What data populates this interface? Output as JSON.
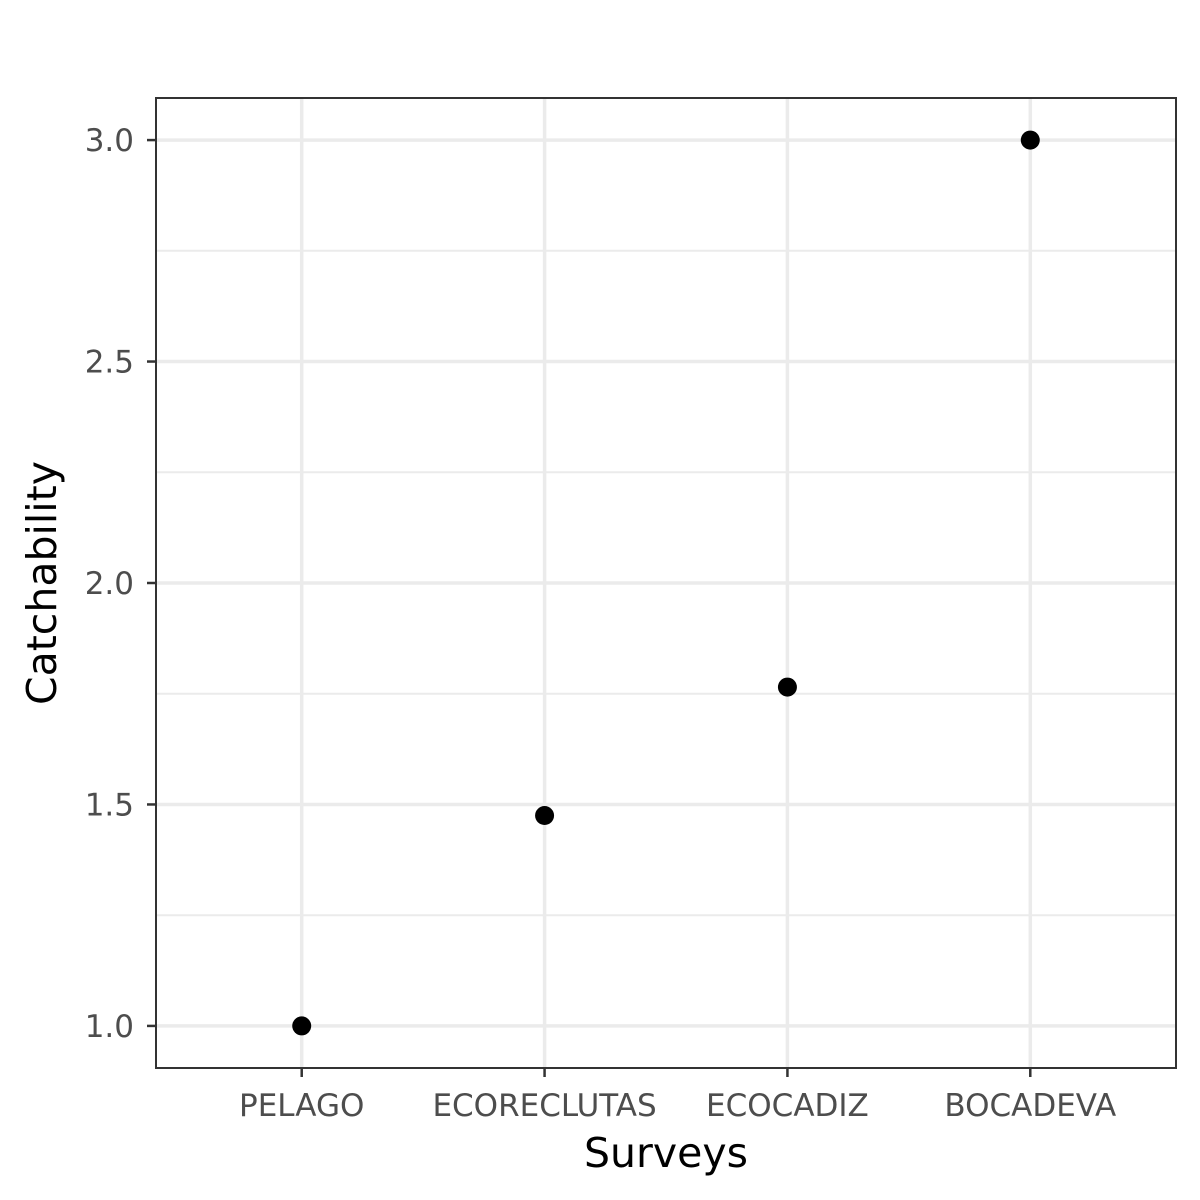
{
  "chart_data": {
    "type": "scatter",
    "categories": [
      "PELAGO",
      "ECORECLUTAS",
      "ECOCADIZ",
      "BOCADEVA"
    ],
    "values": [
      1.0,
      1.475,
      1.765,
      3.0
    ],
    "xlabel": "Surveys",
    "ylabel": "Catchability",
    "ylim": [
      0.905,
      3.095
    ],
    "yticks": [
      1.0,
      1.5,
      2.0,
      2.5,
      3.0
    ],
    "ytick_labels": [
      "1.0",
      "1.5",
      "2.0",
      "2.5",
      "3.0"
    ],
    "grid": true,
    "legend": "none",
    "colors": {
      "point": "#000000",
      "grid": "#ebebeb",
      "panel_border": "#333333",
      "tick_text": "#4d4d4d"
    }
  }
}
